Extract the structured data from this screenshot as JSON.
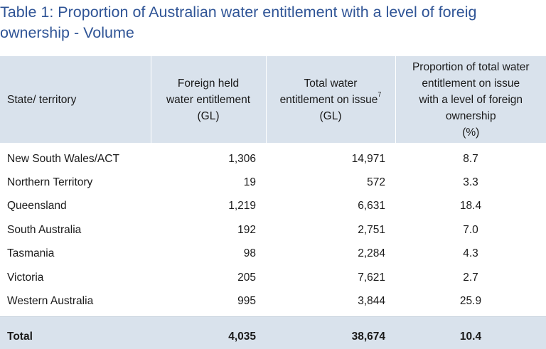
{
  "title": {
    "line1": "Table 1: Proportion of Australian water entitlement with a level of foreig",
    "line2": "ownership - Volume"
  },
  "headers": {
    "state": "State/ territory",
    "foreign": [
      "Foreign held",
      "water entitlement",
      "(GL)"
    ],
    "total": [
      "Total water",
      "entitlement on issue",
      "7",
      "(GL)"
    ],
    "proportion": [
      "Proportion of total water",
      "entitlement on issue",
      "with a level of foreign",
      "ownership",
      "(%)"
    ]
  },
  "rows": [
    {
      "state": "New South Wales/ACT",
      "foreign": "1,306",
      "total": "14,971",
      "proportion": "8.7"
    },
    {
      "state": "Northern Territory",
      "foreign": "19",
      "total": "572",
      "proportion": "3.3"
    },
    {
      "state": "Queensland",
      "foreign": "1,219",
      "total": "6,631",
      "proportion": "18.4"
    },
    {
      "state": "South Australia",
      "foreign": "192",
      "total": "2,751",
      "proportion": "7.0"
    },
    {
      "state": "Tasmania",
      "foreign": "98",
      "total": "2,284",
      "proportion": "4.3"
    },
    {
      "state": "Victoria",
      "foreign": "205",
      "total": "7,621",
      "proportion": "2.7"
    },
    {
      "state": "Western Australia",
      "foreign": "995",
      "total": "3,844",
      "proportion": "25.9"
    }
  ],
  "total_row": {
    "state": "Total",
    "foreign": "4,035",
    "total": "38,674",
    "proportion": "10.4"
  },
  "colors": {
    "title": "#2f5496",
    "header_bg": "#d9e2ec"
  }
}
